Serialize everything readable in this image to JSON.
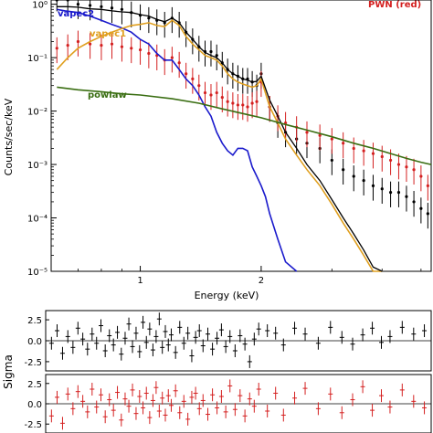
{
  "chart_data": [
    {
      "type": "line",
      "yscale": "log",
      "xscale": "log",
      "xlabel": "Energy (keV)",
      "ylabel": "Counts/sec/keV",
      "xlim": [
        0.6,
        5.3
      ],
      "ylim": [
        1e-05,
        1.2
      ],
      "x_tick_labels": [
        "1",
        "2"
      ],
      "y_tick_labels": [
        "10⁰",
        "10⁻¹",
        "10⁻²",
        "10⁻³",
        "10⁻⁴",
        "10⁻⁵"
      ],
      "annotations": {
        "vapec2": {
          "text": "vapec2",
          "color": "#1a1acc"
        },
        "vapec1": {
          "text": "vapec1",
          "color": "#e0a020"
        },
        "powlaw": {
          "text": "powlaw",
          "color": "#3a6e12"
        },
        "pwn": {
          "text": "PWN (red)",
          "color": "#d42020"
        }
      },
      "series": [
        {
          "role": "black-data",
          "color": "#000000",
          "x": [
            0.62,
            0.66,
            0.7,
            0.75,
            0.8,
            0.85,
            0.9,
            0.95,
            1.0,
            1.05,
            1.1,
            1.15,
            1.2,
            1.25,
            1.3,
            1.35,
            1.4,
            1.45,
            1.5,
            1.55,
            1.6,
            1.65,
            1.7,
            1.75,
            1.8,
            1.85,
            1.9,
            1.95,
            2.0,
            2.1,
            2.2,
            2.3,
            2.45,
            2.6,
            2.8,
            3.0,
            3.2,
            3.4,
            3.6,
            3.8,
            4.0,
            4.2,
            4.4,
            4.6,
            4.8,
            5.0,
            5.2
          ],
          "y": [
            1.4,
            1.2,
            1.0,
            0.95,
            0.9,
            0.85,
            0.8,
            0.7,
            0.62,
            0.55,
            0.5,
            0.45,
            0.55,
            0.45,
            0.3,
            0.22,
            0.16,
            0.13,
            0.13,
            0.11,
            0.08,
            0.06,
            0.05,
            0.045,
            0.04,
            0.04,
            0.035,
            0.03,
            0.05,
            0.012,
            0.006,
            0.004,
            0.003,
            0.0025,
            0.002,
            0.0012,
            0.0008,
            0.0006,
            0.0005,
            0.0004,
            0.00035,
            0.0003,
            0.0003,
            0.00025,
            0.0002,
            0.00015,
            0.00012
          ]
        },
        {
          "role": "red-data",
          "color": "#d42020",
          "x": [
            0.62,
            0.66,
            0.7,
            0.75,
            0.8,
            0.85,
            0.9,
            0.95,
            1.0,
            1.05,
            1.1,
            1.15,
            1.2,
            1.25,
            1.3,
            1.35,
            1.4,
            1.45,
            1.5,
            1.55,
            1.6,
            1.65,
            1.7,
            1.75,
            1.8,
            1.85,
            1.9,
            1.95,
            2.0,
            2.1,
            2.2,
            2.3,
            2.45,
            2.6,
            2.8,
            3.0,
            3.2,
            3.4,
            3.6,
            3.8,
            4.0,
            4.2,
            4.4,
            4.6,
            4.8,
            5.0,
            5.2
          ],
          "y": [
            0.15,
            0.17,
            0.2,
            0.18,
            0.17,
            0.18,
            0.16,
            0.15,
            0.14,
            0.12,
            0.11,
            0.09,
            0.1,
            0.08,
            0.05,
            0.04,
            0.03,
            0.022,
            0.02,
            0.022,
            0.018,
            0.015,
            0.014,
            0.013,
            0.013,
            0.012,
            0.014,
            0.015,
            0.035,
            0.012,
            0.008,
            0.006,
            0.005,
            0.004,
            0.0035,
            0.003,
            0.0025,
            0.002,
            0.0018,
            0.0016,
            0.0014,
            0.0012,
            0.001,
            0.0009,
            0.0008,
            0.0006,
            0.0004
          ]
        },
        {
          "role": "vapec2",
          "color": "#1a1acc",
          "x": [
            0.62,
            0.65,
            0.7,
            0.75,
            0.8,
            0.85,
            0.9,
            0.95,
            1.0,
            1.05,
            1.1,
            1.15,
            1.2,
            1.25,
            1.3,
            1.35,
            1.4,
            1.45,
            1.5,
            1.55,
            1.6,
            1.65,
            1.7,
            1.75,
            1.8,
            1.85,
            1.9,
            1.95,
            2.0,
            2.05,
            2.1,
            2.2,
            2.3,
            2.45
          ],
          "y": [
            0.8,
            0.75,
            0.7,
            0.6,
            0.5,
            0.42,
            0.36,
            0.3,
            0.22,
            0.18,
            0.12,
            0.09,
            0.09,
            0.06,
            0.04,
            0.03,
            0.02,
            0.012,
            0.008,
            0.004,
            0.0025,
            0.0018,
            0.0015,
            0.002,
            0.002,
            0.0018,
            0.0009,
            0.0006,
            0.0004,
            0.00025,
            0.00012,
            4e-05,
            1.5e-05,
            6e-06
          ]
        },
        {
          "role": "vapec1",
          "color": "#e0a020",
          "x": [
            0.62,
            0.66,
            0.7,
            0.75,
            0.8,
            0.85,
            0.9,
            0.95,
            1.0,
            1.05,
            1.1,
            1.15,
            1.2,
            1.25,
            1.3,
            1.35,
            1.4,
            1.45,
            1.5,
            1.55,
            1.6,
            1.65,
            1.7,
            1.75,
            1.8,
            1.85,
            1.9,
            1.95,
            2.0,
            2.1,
            2.2,
            2.3,
            2.45,
            2.6,
            2.8,
            3.0,
            3.2,
            3.4,
            3.6,
            3.8,
            4.0
          ],
          "y": [
            0.06,
            0.1,
            0.15,
            0.2,
            0.25,
            0.3,
            0.35,
            0.4,
            0.42,
            0.45,
            0.4,
            0.38,
            0.5,
            0.4,
            0.25,
            0.18,
            0.14,
            0.11,
            0.1,
            0.09,
            0.07,
            0.05,
            0.04,
            0.035,
            0.032,
            0.03,
            0.028,
            0.03,
            0.04,
            0.012,
            0.006,
            0.003,
            0.0015,
            0.0008,
            0.0004,
            0.00018,
            8e-05,
            4e-05,
            2e-05,
            1e-05,
            7e-06
          ]
        },
        {
          "role": "total-model",
          "color": "#000000",
          "x": [
            0.62,
            0.66,
            0.7,
            0.75,
            0.8,
            0.85,
            0.9,
            0.95,
            1.0,
            1.05,
            1.1,
            1.15,
            1.2,
            1.25,
            1.3,
            1.35,
            1.4,
            1.45,
            1.5,
            1.55,
            1.6,
            1.65,
            1.7,
            1.75,
            1.8,
            1.85,
            1.9,
            1.95,
            2.0,
            2.1,
            2.2,
            2.3,
            2.45,
            2.6,
            2.8,
            3.0,
            3.2,
            3.4,
            3.6,
            3.8,
            4.0
          ],
          "y": [
            0.9,
            0.9,
            0.88,
            0.82,
            0.8,
            0.75,
            0.72,
            0.7,
            0.64,
            0.6,
            0.52,
            0.47,
            0.55,
            0.45,
            0.3,
            0.22,
            0.16,
            0.125,
            0.11,
            0.1,
            0.08,
            0.06,
            0.05,
            0.045,
            0.04,
            0.038,
            0.035,
            0.036,
            0.045,
            0.016,
            0.008,
            0.004,
            0.002,
            0.001,
            0.0005,
            0.00022,
            0.0001,
            5e-05,
            2.5e-05,
            1.2e-05,
            8e-06
          ]
        },
        {
          "role": "powlaw",
          "color": "#3a6e12",
          "x": [
            0.62,
            0.7,
            0.8,
            0.9,
            1.0,
            1.2,
            1.4,
            1.6,
            1.8,
            2.0,
            2.3,
            2.6,
            3.0,
            3.4,
            3.8,
            4.2,
            4.6,
            5.0,
            5.3
          ],
          "y": [
            0.028,
            0.025,
            0.023,
            0.021,
            0.02,
            0.017,
            0.014,
            0.011,
            0.009,
            0.0075,
            0.0056,
            0.0044,
            0.0033,
            0.0025,
            0.002,
            0.0016,
            0.0013,
            0.0011,
            0.001
          ]
        }
      ]
    },
    {
      "type": "scatter",
      "role": "residuals-black",
      "ylabel": "Sigma",
      "ylim": [
        -3.6,
        3.6
      ],
      "y_tick_labels": [
        "2.5",
        "0.0",
        "-2.5"
      ],
      "color": "#000000",
      "points": [
        [
          0.62,
          -0.3
        ],
        [
          0.64,
          1.2
        ],
        [
          0.66,
          -1.5
        ],
        [
          0.68,
          0.5
        ],
        [
          0.7,
          -0.8
        ],
        [
          0.72,
          1.5
        ],
        [
          0.74,
          0.2
        ],
        [
          0.76,
          -1.0
        ],
        [
          0.78,
          0.8
        ],
        [
          0.8,
          -0.3
        ],
        [
          0.82,
          1.8
        ],
        [
          0.84,
          -1.2
        ],
        [
          0.86,
          0.6
        ],
        [
          0.88,
          -0.5
        ],
        [
          0.9,
          1.0
        ],
        [
          0.92,
          -1.6
        ],
        [
          0.94,
          0.3
        ],
        [
          0.96,
          2.0
        ],
        [
          0.98,
          -0.7
        ],
        [
          1.0,
          0.9
        ],
        [
          1.02,
          -1.3
        ],
        [
          1.04,
          2.2
        ],
        [
          1.06,
          -0.2
        ],
        [
          1.08,
          1.4
        ],
        [
          1.1,
          -1.1
        ],
        [
          1.12,
          0.5
        ],
        [
          1.14,
          2.6
        ],
        [
          1.16,
          -0.8
        ],
        [
          1.18,
          1.1
        ],
        [
          1.2,
          -0.5
        ],
        [
          1.22,
          0.7
        ],
        [
          1.25,
          -1.4
        ],
        [
          1.28,
          1.6
        ],
        [
          1.31,
          -0.3
        ],
        [
          1.34,
          0.9
        ],
        [
          1.37,
          -1.8
        ],
        [
          1.4,
          0.4
        ],
        [
          1.43,
          1.2
        ],
        [
          1.46,
          -0.6
        ],
        [
          1.5,
          0.8
        ],
        [
          1.54,
          -1.0
        ],
        [
          1.58,
          0.3
        ],
        [
          1.62,
          1.3
        ],
        [
          1.66,
          -0.7
        ],
        [
          1.7,
          0.5
        ],
        [
          1.75,
          -1.2
        ],
        [
          1.8,
          0.6
        ],
        [
          1.85,
          -0.4
        ],
        [
          1.9,
          -2.5
        ],
        [
          1.95,
          0.2
        ],
        [
          2.0,
          1.4
        ],
        [
          2.1,
          1.2
        ],
        [
          2.2,
          0.9
        ],
        [
          2.3,
          -0.5
        ],
        [
          2.45,
          1.5
        ],
        [
          2.6,
          0.8
        ],
        [
          2.8,
          -0.3
        ],
        [
          3.0,
          1.6
        ],
        [
          3.2,
          0.4
        ],
        [
          3.4,
          -0.4
        ],
        [
          3.6,
          0.7
        ],
        [
          3.8,
          1.5
        ],
        [
          4.0,
          -0.2
        ],
        [
          4.2,
          0.5
        ],
        [
          4.5,
          1.6
        ],
        [
          4.8,
          0.8
        ],
        [
          5.1,
          1.2
        ]
      ]
    },
    {
      "type": "scatter",
      "role": "residuals-red",
      "ylim": [
        -3.6,
        3.6
      ],
      "y_tick_labels": [
        "2.5",
        "0.0",
        "-2.5"
      ],
      "color": "#d42020",
      "points": [
        [
          0.62,
          -1.5
        ],
        [
          0.64,
          0.8
        ],
        [
          0.66,
          -2.4
        ],
        [
          0.68,
          1.2
        ],
        [
          0.7,
          -0.6
        ],
        [
          0.72,
          1.5
        ],
        [
          0.74,
          0.3
        ],
        [
          0.76,
          -1.0
        ],
        [
          0.78,
          1.8
        ],
        [
          0.8,
          -0.4
        ],
        [
          0.82,
          1.1
        ],
        [
          0.84,
          -1.6
        ],
        [
          0.86,
          0.5
        ],
        [
          0.88,
          -0.8
        ],
        [
          0.9,
          1.4
        ],
        [
          0.92,
          -2.0
        ],
        [
          0.94,
          0.6
        ],
        [
          0.96,
          -0.3
        ],
        [
          0.98,
          1.7
        ],
        [
          1.0,
          -1.2
        ],
        [
          1.02,
          0.9
        ],
        [
          1.04,
          -0.5
        ],
        [
          1.06,
          1.3
        ],
        [
          1.08,
          -1.7
        ],
        [
          1.1,
          0.4
        ],
        [
          1.12,
          2.0
        ],
        [
          1.14,
          -0.9
        ],
        [
          1.16,
          0.7
        ],
        [
          1.18,
          -1.4
        ],
        [
          1.2,
          1.0
        ],
        [
          1.22,
          -0.2
        ],
        [
          1.25,
          1.6
        ],
        [
          1.28,
          -1.1
        ],
        [
          1.31,
          0.3
        ],
        [
          1.34,
          -1.9
        ],
        [
          1.37,
          0.8
        ],
        [
          1.4,
          1.3
        ],
        [
          1.43,
          -0.6
        ],
        [
          1.46,
          0.4
        ],
        [
          1.5,
          -1.3
        ],
        [
          1.54,
          1.1
        ],
        [
          1.58,
          -0.5
        ],
        [
          1.62,
          0.9
        ],
        [
          1.66,
          -1.0
        ],
        [
          1.7,
          2.2
        ],
        [
          1.75,
          -0.7
        ],
        [
          1.8,
          1.0
        ],
        [
          1.85,
          -1.5
        ],
        [
          1.9,
          0.6
        ],
        [
          1.95,
          -0.3
        ],
        [
          2.0,
          1.8
        ],
        [
          2.1,
          -0.9
        ],
        [
          2.2,
          1.3
        ],
        [
          2.3,
          -1.4
        ],
        [
          2.45,
          0.7
        ],
        [
          2.6,
          1.9
        ],
        [
          2.8,
          -0.6
        ],
        [
          3.0,
          1.2
        ],
        [
          3.2,
          -1.1
        ],
        [
          3.4,
          0.5
        ],
        [
          3.6,
          2.1
        ],
        [
          3.8,
          -0.8
        ],
        [
          4.0,
          1.0
        ],
        [
          4.2,
          -0.4
        ],
        [
          4.5,
          1.7
        ],
        [
          4.8,
          0.3
        ],
        [
          5.1,
          -0.5
        ]
      ]
    }
  ]
}
